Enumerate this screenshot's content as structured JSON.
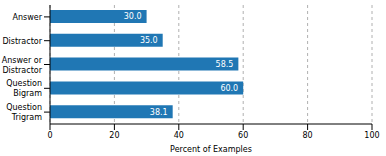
{
  "chart_data": {
    "type": "bar",
    "orientation": "horizontal",
    "categories": [
      "Answer",
      "Distractor",
      "Answer or\nDistractor",
      "Question\nBigram",
      "Question\nTrigram"
    ],
    "values": [
      30.0,
      35.0,
      58.5,
      60.0,
      38.1
    ],
    "value_labels": [
      "30.0",
      "35.0",
      "58.5",
      "60.0",
      "38.1"
    ],
    "data_labels": true,
    "color": "#2077b4",
    "xlabel": "Percent of Examples",
    "xlim": [
      0,
      100
    ],
    "xticks": [
      0,
      20,
      40,
      60,
      80,
      100
    ],
    "grid": true
  }
}
